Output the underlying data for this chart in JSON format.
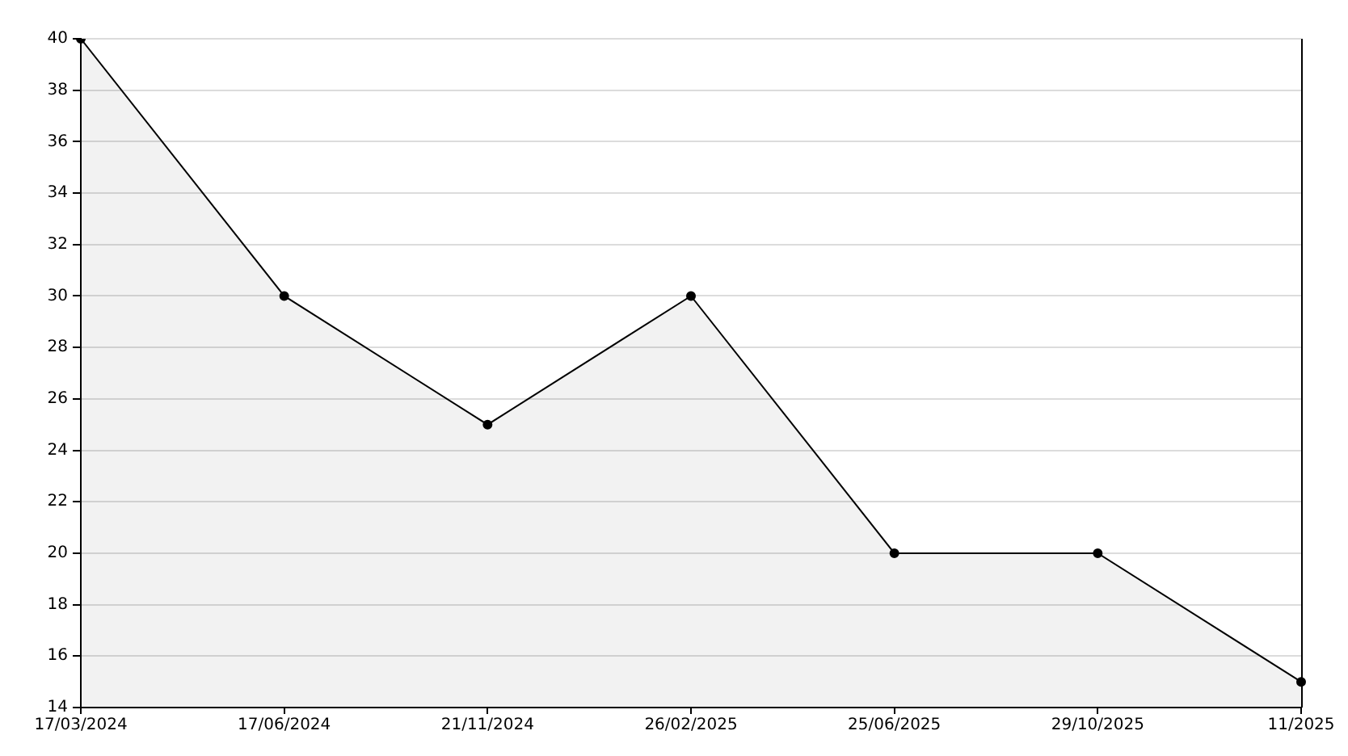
{
  "chart_data": {
    "type": "area",
    "categories": [
      "17/03/2024",
      "17/06/2024",
      "21/11/2024",
      "26/02/2025",
      "25/06/2025",
      "29/10/2025",
      "11/2025"
    ],
    "series": [
      {
        "color": "#000000",
        "values": [
          40,
          30,
          25,
          30,
          20,
          20,
          15
        ]
      }
    ],
    "ylim": [
      14,
      40
    ],
    "yticks": [
      14,
      16,
      18,
      20,
      22,
      24,
      26,
      28,
      30,
      32,
      34,
      36,
      38,
      40
    ],
    "grid": "y",
    "legend": false,
    "marker": "circle"
  }
}
